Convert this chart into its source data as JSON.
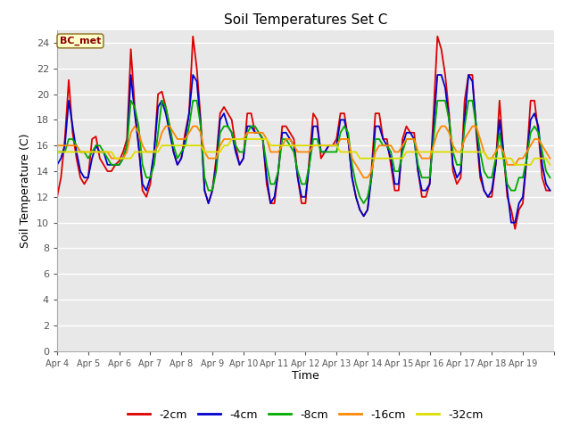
{
  "title": "Soil Temperatures Set C",
  "xlabel": "Time",
  "ylabel": "Soil Temperature (C)",
  "ylim": [
    0,
    25
  ],
  "yticks": [
    0,
    2,
    4,
    6,
    8,
    10,
    12,
    14,
    16,
    18,
    20,
    22,
    24
  ],
  "fig_bg": "#ffffff",
  "plot_bg": "#e8e8e8",
  "grid_color": "#ffffff",
  "annotation": "BC_met",
  "annotation_color": "#8b0000",
  "annotation_bg": "#ffffcc",
  "annotation_edge": "#8b6914",
  "series_colors": [
    "#dd0000",
    "#0000cc",
    "#00aa00",
    "#ff8800",
    "#dddd00"
  ],
  "series_labels": [
    "-2cm",
    "-4cm",
    "-8cm",
    "-16cm",
    "-32cm"
  ],
  "line_width": 1.3,
  "x_labels": [
    "Apr 4",
    "Apr 5",
    "Apr 6",
    "Apr 7",
    "Apr 8",
    "Apr 9",
    "Apr 10",
    "Apr 11",
    "Apr 12",
    "Apr 13",
    "Apr 14",
    "Apr 15",
    "Apr 16",
    "Apr 17",
    "Apr 18",
    "Apr 19"
  ],
  "n_days": 16,
  "pts_per_day": 8,
  "depths_2cm": [
    12.0,
    13.5,
    16.5,
    21.1,
    17.0,
    15.0,
    13.5,
    13.0,
    13.5,
    16.5,
    16.7,
    15.0,
    14.5,
    14.0,
    14.0,
    14.5,
    14.8,
    15.5,
    16.5,
    23.5,
    19.0,
    16.0,
    12.5,
    12.0,
    13.0,
    15.5,
    20.0,
    20.2,
    19.0,
    17.5,
    15.5,
    14.5,
    15.0,
    17.0,
    18.5,
    24.5,
    22.0,
    18.0,
    12.5,
    11.5,
    12.5,
    15.0,
    18.5,
    19.0,
    18.5,
    18.0,
    16.0,
    14.5,
    15.0,
    18.5,
    18.5,
    17.0,
    17.0,
    16.5,
    13.0,
    11.5,
    11.5,
    14.0,
    17.5,
    17.5,
    17.0,
    16.5,
    13.5,
    11.5,
    11.5,
    15.0,
    18.5,
    18.0,
    15.0,
    15.5,
    16.0,
    16.0,
    16.5,
    18.5,
    18.5,
    16.5,
    13.5,
    12.0,
    11.0,
    10.5,
    11.0,
    14.0,
    18.5,
    18.5,
    16.5,
    16.5,
    14.5,
    12.5,
    12.5,
    16.5,
    17.5,
    17.0,
    17.0,
    14.0,
    12.0,
    12.0,
    13.0,
    18.5,
    24.5,
    23.5,
    21.5,
    18.5,
    14.0,
    13.0,
    13.5,
    19.5,
    21.5,
    21.5,
    17.0,
    13.5,
    12.5,
    12.0,
    12.0,
    14.5,
    19.5,
    15.5,
    12.0,
    11.0,
    9.5,
    11.0,
    11.5,
    15.0,
    19.5,
    19.5,
    17.0,
    13.5,
    12.5,
    12.5
  ],
  "depths_4cm": [
    14.5,
    15.0,
    16.0,
    19.5,
    17.5,
    15.5,
    14.0,
    13.5,
    13.5,
    15.0,
    16.0,
    15.5,
    15.5,
    14.5,
    14.5,
    14.5,
    14.5,
    15.0,
    16.0,
    21.5,
    18.5,
    16.0,
    13.0,
    12.5,
    13.5,
    15.5,
    19.0,
    19.5,
    18.5,
    17.0,
    15.5,
    14.5,
    15.0,
    16.5,
    18.5,
    21.5,
    21.0,
    17.5,
    12.5,
    11.5,
    12.5,
    14.5,
    18.0,
    18.5,
    17.5,
    17.0,
    15.5,
    14.5,
    15.0,
    17.5,
    17.5,
    17.0,
    17.0,
    16.5,
    13.5,
    11.5,
    12.0,
    14.0,
    17.0,
    17.0,
    16.5,
    16.0,
    13.5,
    12.0,
    12.0,
    14.5,
    17.5,
    17.5,
    15.5,
    15.5,
    16.0,
    16.0,
    16.0,
    18.0,
    18.0,
    16.5,
    13.5,
    12.0,
    11.0,
    10.5,
    11.0,
    13.5,
    17.5,
    17.5,
    16.5,
    16.0,
    15.0,
    13.0,
    13.0,
    16.0,
    17.0,
    17.0,
    16.5,
    14.0,
    12.5,
    12.5,
    13.0,
    17.5,
    21.5,
    21.5,
    20.5,
    18.0,
    14.5,
    13.5,
    14.0,
    18.0,
    21.5,
    21.0,
    17.5,
    14.0,
    12.5,
    12.0,
    12.5,
    14.5,
    18.0,
    15.5,
    12.5,
    10.0,
    10.0,
    11.5,
    12.0,
    15.0,
    18.0,
    18.5,
    17.5,
    14.5,
    13.0,
    12.5
  ],
  "depths_8cm": [
    15.5,
    15.5,
    15.5,
    16.5,
    16.5,
    16.0,
    15.5,
    15.5,
    15.0,
    15.5,
    16.0,
    16.0,
    15.5,
    15.0,
    14.5,
    14.5,
    14.5,
    15.0,
    16.0,
    19.5,
    19.0,
    17.5,
    14.5,
    13.5,
    13.5,
    14.5,
    17.0,
    19.5,
    19.0,
    17.5,
    16.0,
    15.0,
    15.5,
    16.0,
    17.5,
    19.5,
    19.5,
    17.5,
    13.5,
    12.5,
    12.5,
    14.0,
    17.0,
    17.5,
    17.5,
    17.0,
    16.0,
    15.5,
    15.5,
    17.0,
    17.5,
    17.5,
    17.0,
    16.5,
    14.5,
    13.0,
    13.0,
    14.0,
    16.5,
    16.5,
    16.0,
    15.5,
    14.0,
    13.0,
    13.0,
    14.5,
    16.5,
    16.5,
    15.5,
    15.5,
    15.5,
    15.5,
    15.5,
    17.0,
    17.5,
    17.0,
    14.5,
    13.0,
    12.0,
    11.5,
    12.0,
    13.5,
    16.5,
    16.5,
    16.0,
    16.0,
    15.5,
    14.0,
    14.0,
    15.5,
    16.5,
    16.5,
    16.5,
    14.5,
    13.5,
    13.5,
    13.5,
    16.5,
    19.5,
    19.5,
    19.5,
    18.0,
    15.5,
    14.5,
    14.5,
    17.5,
    19.5,
    19.5,
    17.5,
    15.5,
    14.0,
    13.5,
    13.5,
    15.0,
    17.0,
    15.0,
    13.0,
    12.5,
    12.5,
    13.5,
    13.5,
    15.0,
    17.0,
    17.5,
    17.0,
    15.5,
    14.0,
    13.5
  ],
  "depths_16cm": [
    16.0,
    16.0,
    16.0,
    16.0,
    16.0,
    16.0,
    15.5,
    15.5,
    15.5,
    15.5,
    15.5,
    15.5,
    15.5,
    15.5,
    15.0,
    15.0,
    15.0,
    15.0,
    15.5,
    17.0,
    17.5,
    17.0,
    16.0,
    15.5,
    15.5,
    15.5,
    16.0,
    17.0,
    17.5,
    17.5,
    17.0,
    16.5,
    16.5,
    16.5,
    17.0,
    17.5,
    17.5,
    17.0,
    15.5,
    15.0,
    15.0,
    15.0,
    16.0,
    16.5,
    16.5,
    16.5,
    16.5,
    16.5,
    16.5,
    17.0,
    17.0,
    17.0,
    17.0,
    17.0,
    16.5,
    15.5,
    15.5,
    15.5,
    16.0,
    16.5,
    16.5,
    16.0,
    15.5,
    15.5,
    15.5,
    15.5,
    16.0,
    16.0,
    16.0,
    16.0,
    16.0,
    16.0,
    16.0,
    16.5,
    16.5,
    16.5,
    15.0,
    14.5,
    14.0,
    13.5,
    13.5,
    14.0,
    15.5,
    16.0,
    16.0,
    16.0,
    16.0,
    15.5,
    15.5,
    16.0,
    16.5,
    16.5,
    16.5,
    15.5,
    15.0,
    15.0,
    15.0,
    16.0,
    17.0,
    17.5,
    17.5,
    17.0,
    16.0,
    15.5,
    15.5,
    16.5,
    17.0,
    17.5,
    17.5,
    16.5,
    15.5,
    15.0,
    15.0,
    15.5,
    16.0,
    15.5,
    14.5,
    14.5,
    14.5,
    15.0,
    15.0,
    15.5,
    16.0,
    16.5,
    16.5,
    16.0,
    15.5,
    15.0
  ],
  "depths_32cm": [
    15.5,
    15.5,
    15.5,
    15.5,
    15.5,
    15.5,
    15.5,
    15.5,
    15.5,
    15.5,
    15.5,
    15.5,
    15.5,
    15.5,
    15.5,
    15.0,
    15.0,
    15.0,
    15.0,
    15.0,
    15.5,
    15.5,
    15.5,
    15.5,
    15.5,
    15.5,
    15.5,
    16.0,
    16.0,
    16.0,
    16.0,
    16.0,
    16.0,
    16.0,
    16.0,
    16.0,
    16.0,
    16.0,
    15.5,
    15.5,
    15.5,
    15.5,
    15.5,
    16.0,
    16.0,
    16.5,
    16.5,
    16.5,
    16.5,
    16.5,
    16.5,
    16.5,
    16.5,
    16.5,
    16.5,
    16.0,
    16.0,
    16.0,
    16.0,
    16.0,
    16.0,
    16.0,
    16.0,
    16.0,
    16.0,
    16.0,
    16.0,
    16.0,
    16.0,
    16.0,
    16.0,
    16.0,
    16.0,
    15.5,
    15.5,
    15.5,
    15.5,
    15.5,
    15.0,
    15.0,
    15.0,
    15.0,
    15.0,
    15.0,
    15.0,
    15.0,
    15.0,
    15.0,
    15.0,
    15.0,
    15.5,
    15.5,
    15.5,
    15.5,
    15.5,
    15.5,
    15.5,
    15.5,
    15.5,
    15.5,
    15.5,
    15.5,
    15.5,
    15.5,
    15.5,
    15.5,
    15.5,
    15.5,
    15.5,
    15.5,
    15.5,
    15.0,
    15.0,
    15.0,
    15.0,
    15.0,
    15.0,
    15.0,
    14.5,
    14.5,
    14.5,
    14.5,
    14.5,
    15.0,
    15.0,
    15.0,
    15.0,
    14.5
  ]
}
